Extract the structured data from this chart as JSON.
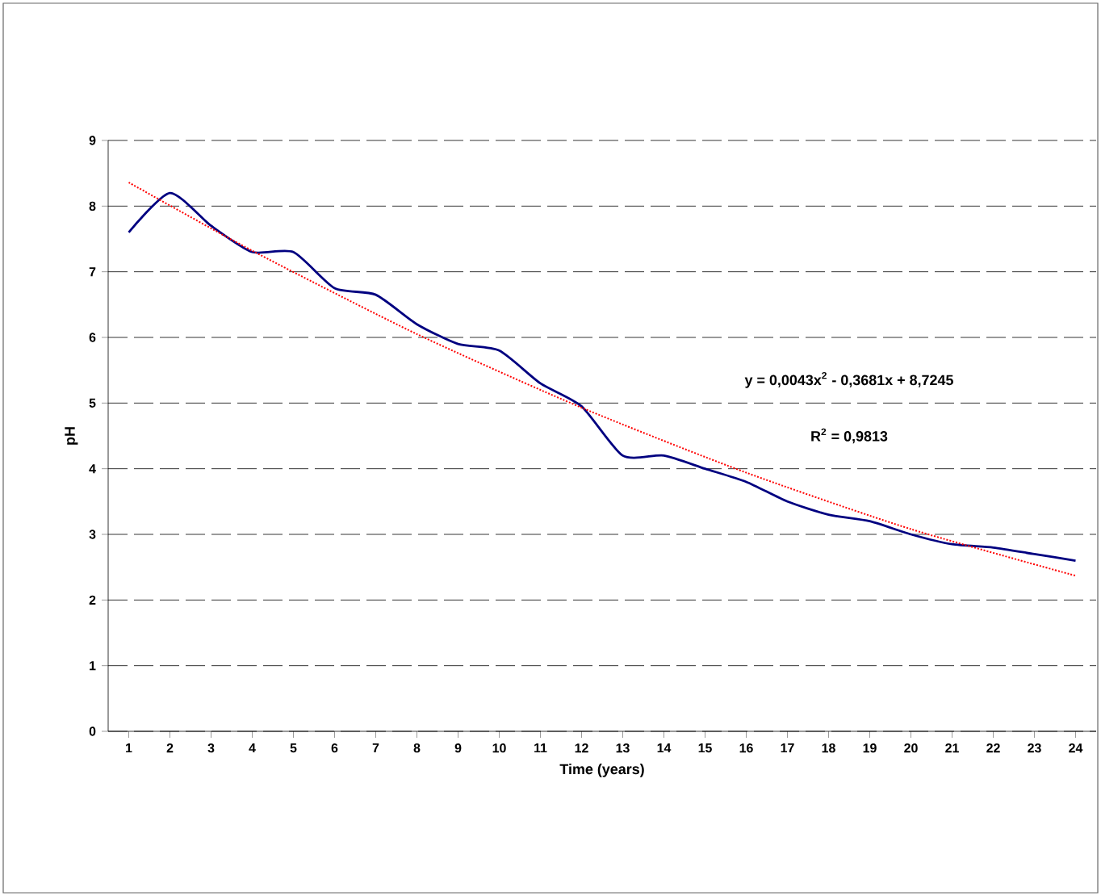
{
  "chart_data": {
    "type": "line",
    "xlabel": "Time (years)",
    "ylabel": "pH",
    "x": [
      1,
      2,
      3,
      4,
      5,
      6,
      7,
      8,
      9,
      10,
      11,
      12,
      13,
      14,
      15,
      16,
      17,
      18,
      19,
      20,
      21,
      22,
      23,
      24
    ],
    "series": [
      {
        "color": "#000080",
        "line_style": "solid",
        "values": [
          7.6,
          8.2,
          7.7,
          7.3,
          7.3,
          6.75,
          6.65,
          6.2,
          5.9,
          5.8,
          5.3,
          4.95,
          4.2,
          4.2,
          4.0,
          3.8,
          3.5,
          3.3,
          3.2,
          3.0,
          2.85,
          2.8,
          2.7,
          2.6
        ]
      },
      {
        "type": "line",
        "color": "#ff0000",
        "line_style": "dotted",
        "x": [
          1,
          4,
          8,
          12,
          16,
          20,
          24
        ],
        "values": [
          8.36,
          7.32,
          6.05,
          4.93,
          3.94,
          3.08,
          2.37
        ]
      }
    ],
    "annotations": [
      "y = 0,0043x$^{2}$ - 0,3681x + 8,7245",
      "R$^{2}$ = 0,9813"
    ],
    "xlim": [
      0.5,
      24.5
    ],
    "ylim": [
      0,
      9
    ],
    "xticks": [
      1,
      2,
      3,
      4,
      5,
      6,
      7,
      8,
      9,
      10,
      11,
      12,
      13,
      14,
      15,
      16,
      17,
      18,
      19,
      20,
      21,
      22,
      23,
      24
    ],
    "yticks": [
      0,
      1,
      2,
      3,
      4,
      5,
      6,
      7,
      8,
      9
    ],
    "grid": "y",
    "marker": "none"
  }
}
